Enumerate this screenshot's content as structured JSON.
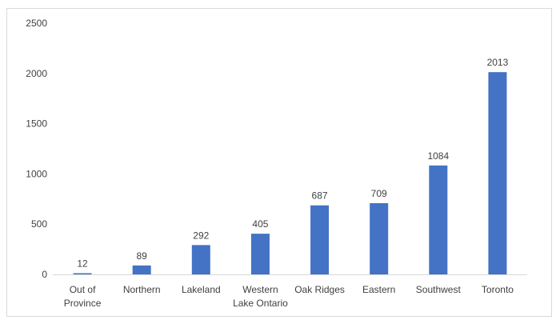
{
  "chart_data": {
    "type": "bar",
    "title": "",
    "xlabel": "",
    "ylabel": "",
    "categories": [
      "Out of Province",
      "Northern",
      "Lakeland",
      "Western Lake Ontario",
      "Oak Ridges",
      "Eastern",
      "Southwest",
      "Toronto"
    ],
    "category_lines": [
      [
        "Out of",
        "Province"
      ],
      [
        "Northern"
      ],
      [
        "Lakeland"
      ],
      [
        "Western",
        "Lake Ontario"
      ],
      [
        "Oak Ridges"
      ],
      [
        "Eastern"
      ],
      [
        "Southwest"
      ],
      [
        "Toronto"
      ]
    ],
    "values": [
      12,
      89,
      292,
      405,
      687,
      709,
      1084,
      2013
    ],
    "value_labels": [
      "12",
      "89",
      "292",
      "405",
      "687",
      "709",
      "1084",
      "2013"
    ],
    "ylim": [
      0,
      2500
    ],
    "yticks": [
      0,
      500,
      1000,
      1500,
      2000,
      2500
    ],
    "ytick_labels": [
      "0",
      "500",
      "1000",
      "1500",
      "2000",
      "2500"
    ],
    "grid": false,
    "legend": "none",
    "bar_color": "#4472c4"
  }
}
